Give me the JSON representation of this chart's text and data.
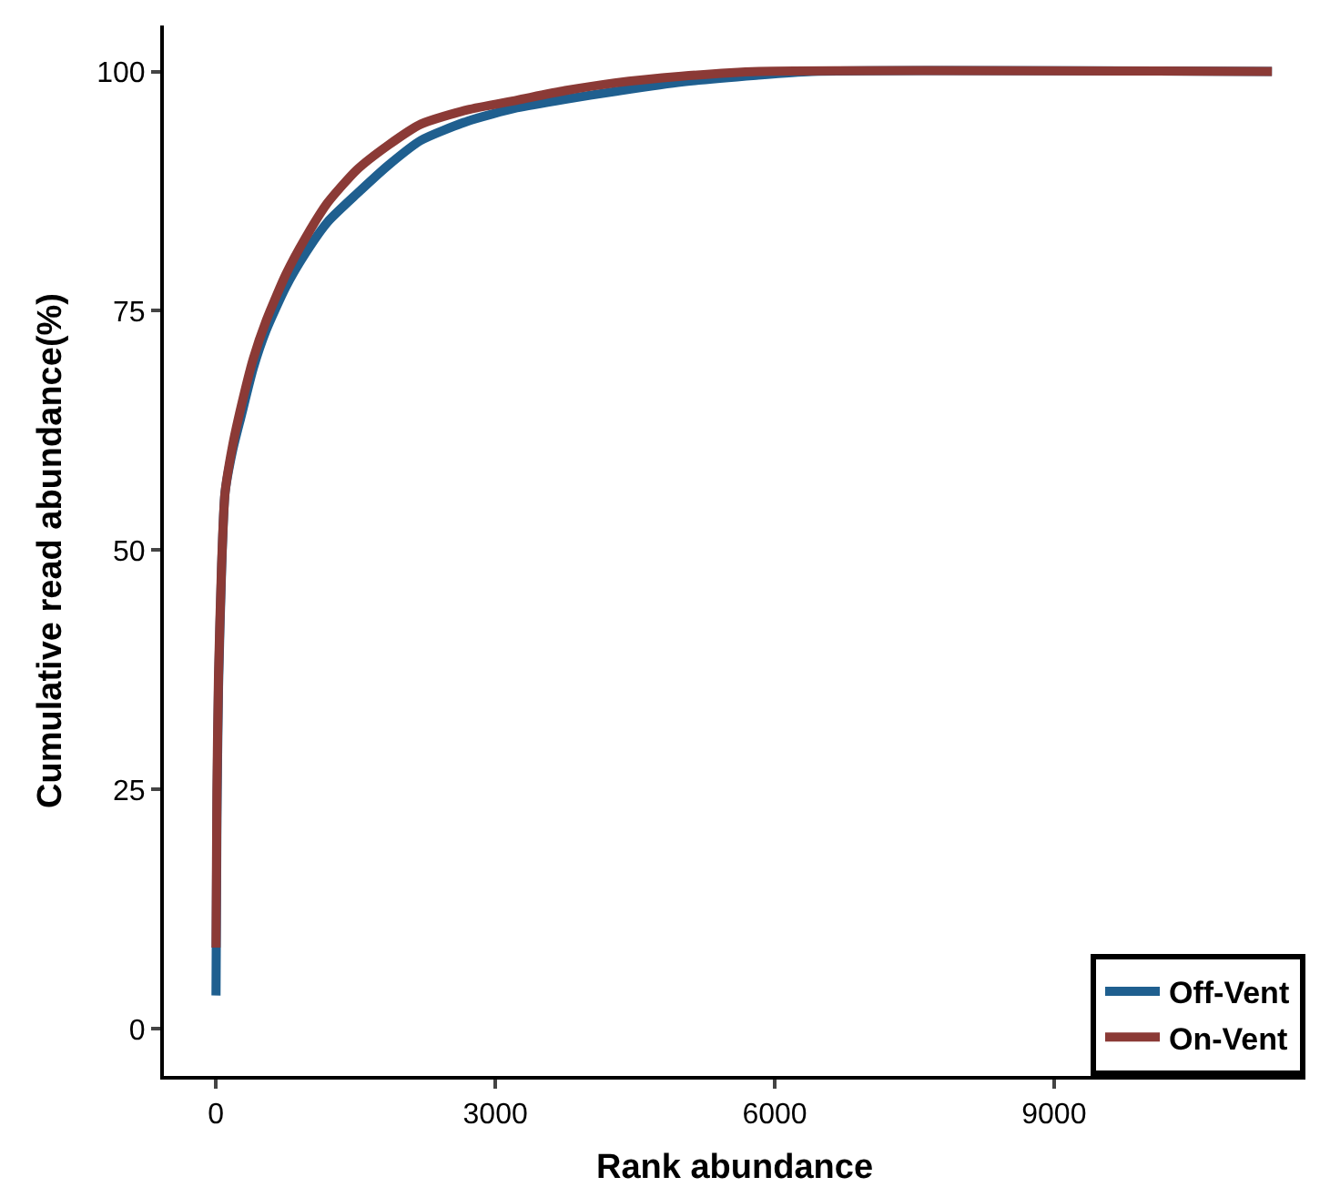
{
  "chart_data": {
    "type": "line",
    "xlabel": "Rank abundance",
    "ylabel": "Cumulative read abundance(%)",
    "xlim": [
      -560,
      11700
    ],
    "ylim": [
      -4.9,
      104.8
    ],
    "xticks": [
      0,
      3000,
      6000,
      9000
    ],
    "yticks": [
      0,
      25,
      50,
      75,
      100
    ],
    "grid": false,
    "legend": "bottom right",
    "marker": "none",
    "line_style": "solid",
    "series": [
      {
        "name": "Off-Vent",
        "color": "#1f5f8f",
        "x": [
          0,
          10,
          27,
          60,
          97,
          180,
          270,
          400,
          540,
          750,
          960,
          1200,
          1510,
          1850,
          2200,
          2700,
          3230,
          3750,
          4280,
          5000,
          5800,
          6400,
          11340
        ],
        "values": [
          3.5,
          22,
          35.7,
          48,
          56,
          60.5,
          64,
          69,
          73,
          77.5,
          81,
          84.3,
          87.2,
          90.2,
          92.8,
          94.8,
          96.2,
          97.1,
          97.9,
          98.9,
          99.6,
          100,
          100
        ]
      },
      {
        "name": "On-Vent",
        "color": "#8b3a36",
        "x": [
          0,
          10,
          27,
          60,
          97,
          180,
          270,
          400,
          540,
          750,
          960,
          1200,
          1510,
          1850,
          2200,
          2700,
          3230,
          3750,
          4280,
          5000,
          5830,
          11340
        ],
        "values": [
          8.5,
          25,
          37,
          48.5,
          56,
          61,
          65,
          70,
          74,
          78.8,
          82.6,
          86.3,
          89.7,
          92.3,
          94.5,
          96,
          97,
          98,
          98.8,
          99.5,
          100,
          100
        ]
      }
    ]
  }
}
